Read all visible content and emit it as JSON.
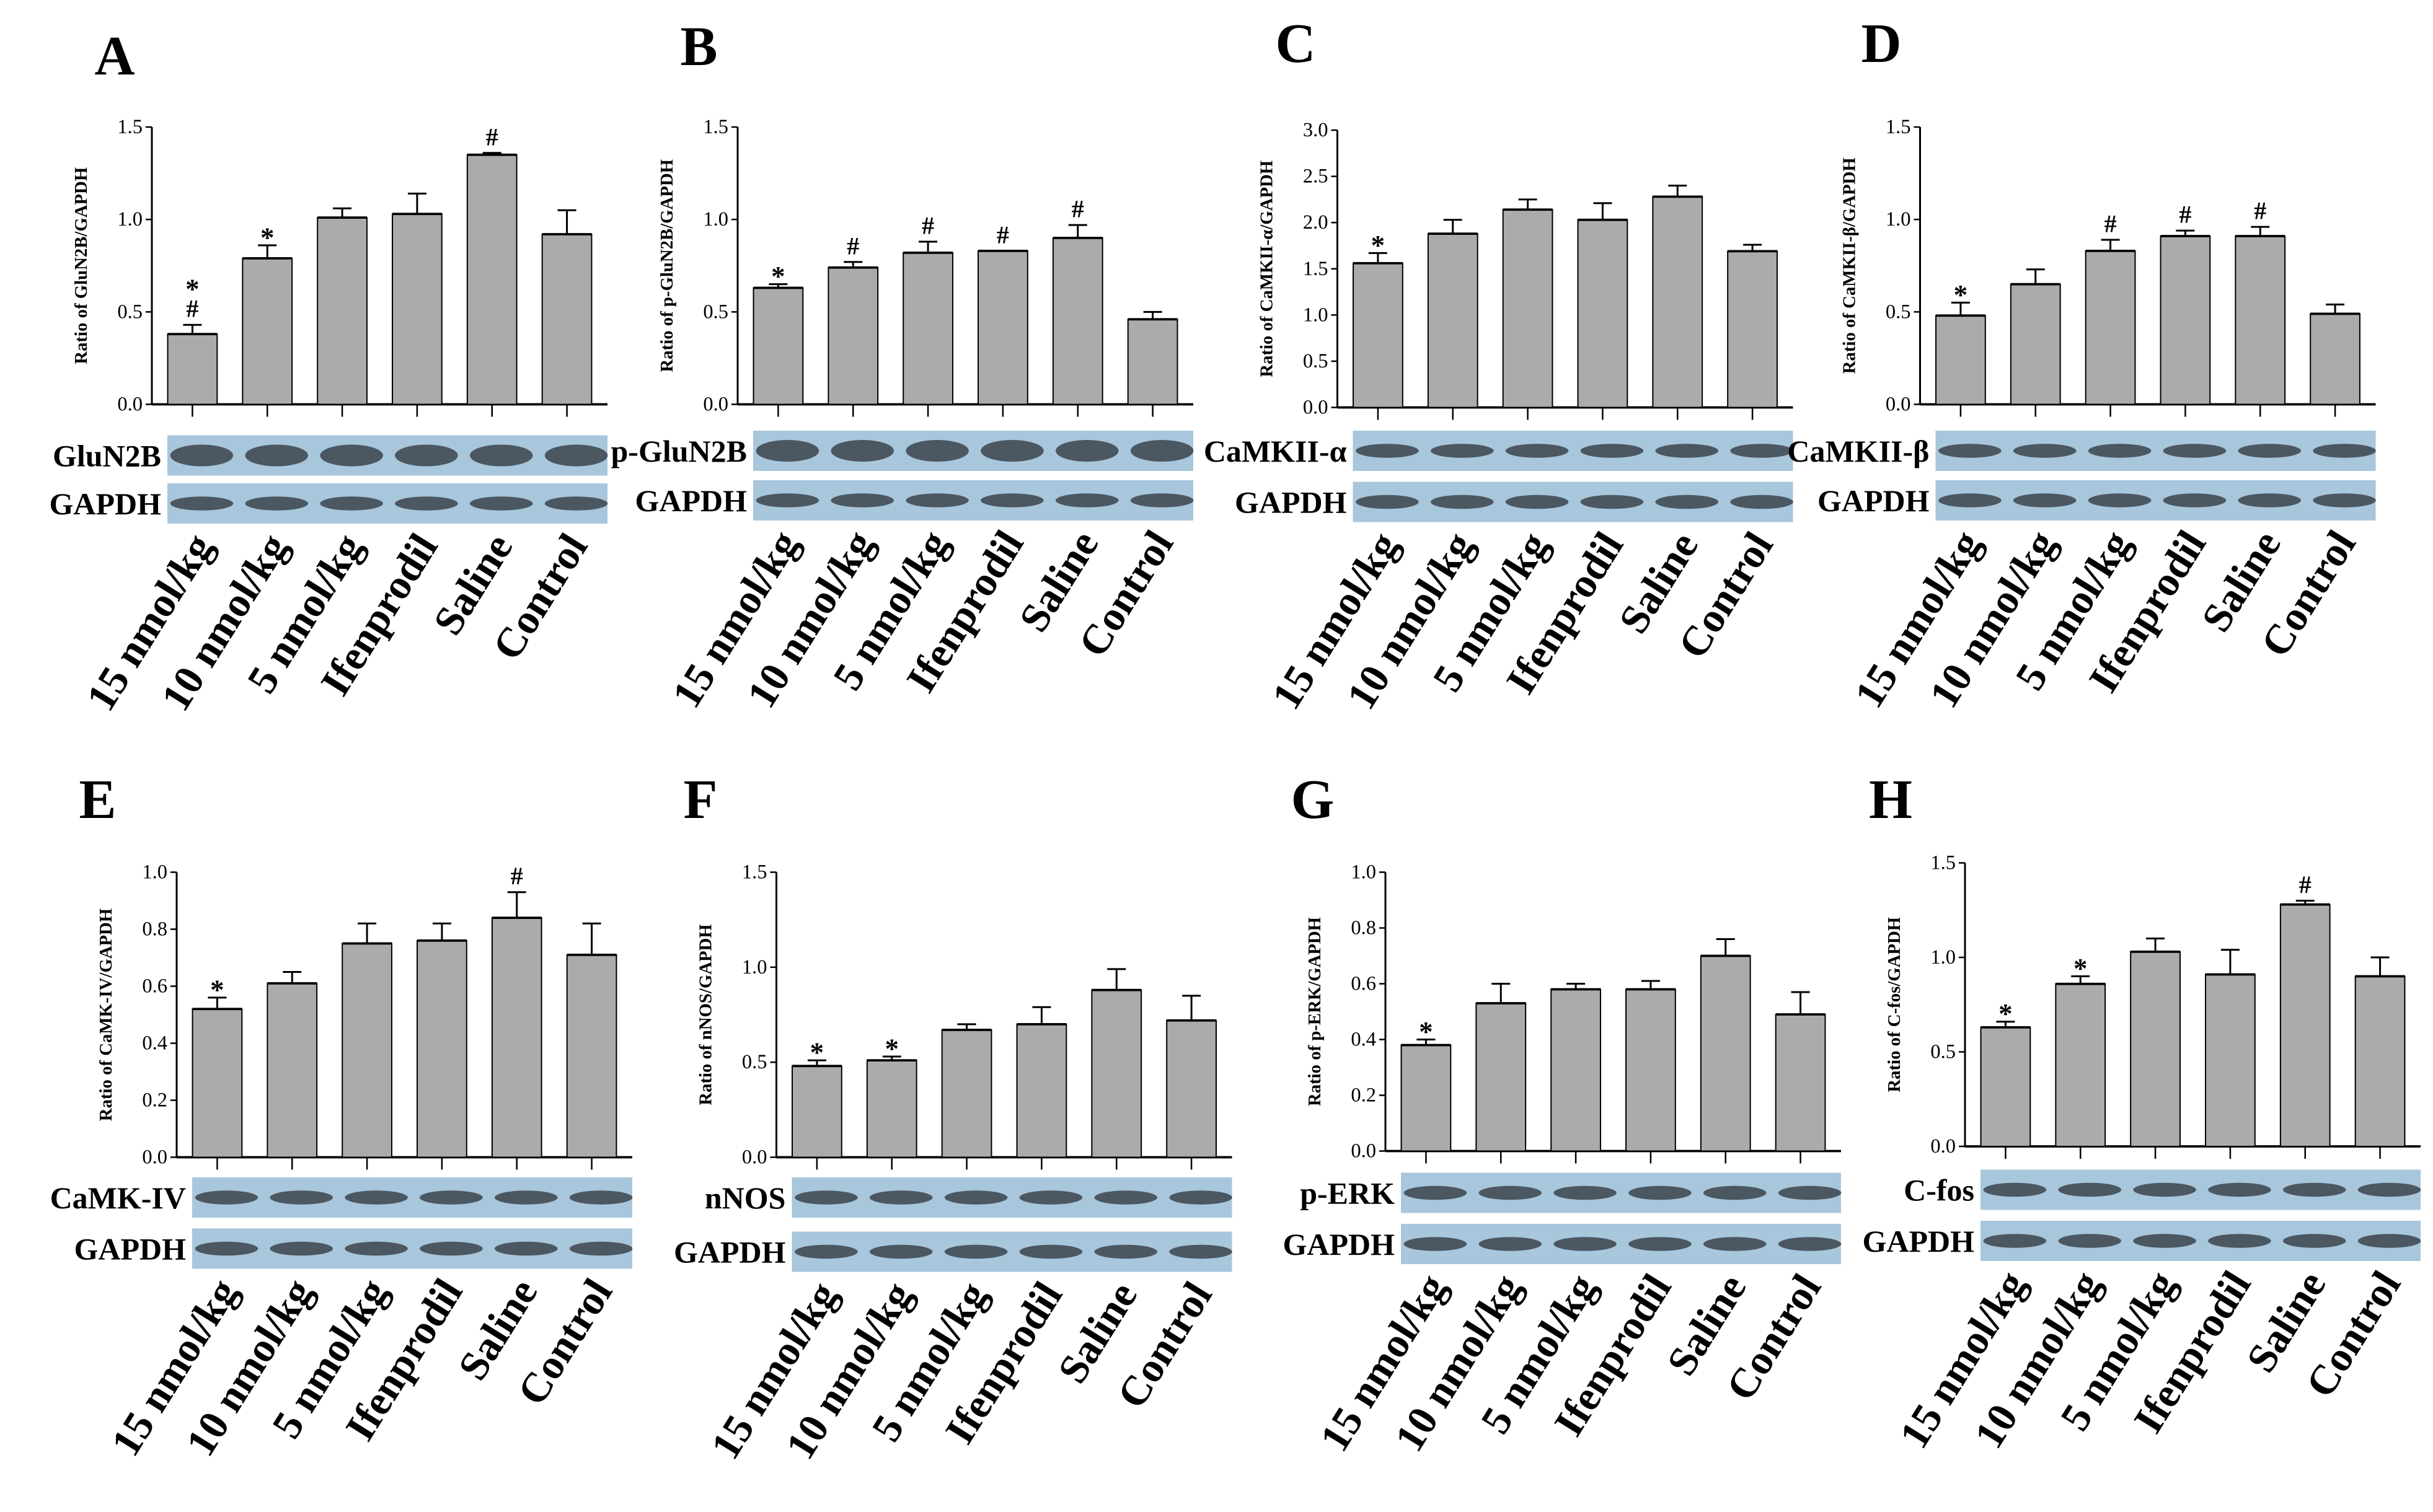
{
  "categories": [
    "15 nmol/kg",
    "10 nmol/kg",
    "5 nmol/kg",
    "Ifenprodil",
    "Saline",
    "Control"
  ],
  "loading_control": "GAPDH",
  "colors": {
    "bar": "#a9abac",
    "blot_bg": "#a8c6dc",
    "band": "#3b434b"
  },
  "chart_data": [
    {
      "type": "bar",
      "panel": "A",
      "ylabel": "Ratio of GluN2B/GAPDH",
      "blot_label": "GluN2B",
      "ylim": [
        0,
        1.5
      ],
      "yticks": [
        "0.0",
        "0.5",
        "1.0",
        "1.5"
      ],
      "tickstep": 0.5,
      "values": [
        0.38,
        0.79,
        1.01,
        1.03,
        1.35,
        0.92
      ],
      "errors": [
        0.05,
        0.07,
        0.05,
        0.11,
        0.01,
        0.13
      ],
      "annotations": [
        "*#",
        "*",
        "",
        "",
        "#",
        ""
      ]
    },
    {
      "type": "bar",
      "panel": "B",
      "ylabel": "Ratio of p-GluN2B/GAPDH",
      "blot_label": "p-GluN2B",
      "ylim": [
        0,
        1.5
      ],
      "yticks": [
        "0.0",
        "0.5",
        "1.0",
        "1.5"
      ],
      "tickstep": 0.5,
      "values": [
        0.63,
        0.74,
        0.82,
        0.83,
        0.9,
        0.46
      ],
      "errors": [
        0.02,
        0.03,
        0.06,
        0.0,
        0.07,
        0.04
      ],
      "annotations": [
        "*",
        "#",
        "#",
        "#",
        "#",
        ""
      ]
    },
    {
      "type": "bar",
      "panel": "C",
      "ylabel": "Ratio of CaMKII-α/GAPDH",
      "blot_label": "CaMKII-α",
      "ylim": [
        0,
        3.0
      ],
      "yticks": [
        "0.0",
        "0.5",
        "1.0",
        "1.5",
        "2.0",
        "2.5",
        "3.0"
      ],
      "tickstep": 0.5,
      "values": [
        1.56,
        1.88,
        2.14,
        2.03,
        2.28,
        1.69
      ],
      "errors": [
        0.11,
        0.15,
        0.11,
        0.18,
        0.12,
        0.07
      ],
      "annotations": [
        "*",
        "",
        "",
        "",
        "",
        ""
      ]
    },
    {
      "type": "bar",
      "panel": "D",
      "ylabel": "Ratio of CaMKII-β/GAPDH",
      "blot_label": "CaMKII-β",
      "ylim": [
        0,
        1.5
      ],
      "yticks": [
        "0.0",
        "0.5",
        "1.0",
        "1.5"
      ],
      "tickstep": 0.5,
      "values": [
        0.48,
        0.65,
        0.83,
        0.91,
        0.91,
        0.49
      ],
      "errors": [
        0.07,
        0.08,
        0.06,
        0.03,
        0.05,
        0.05
      ],
      "annotations": [
        "*",
        "",
        "#",
        "#",
        "#",
        ""
      ]
    },
    {
      "type": "bar",
      "panel": "E",
      "ylabel": "Ratio of CaMK-IV/GAPDH",
      "blot_label": "CaMK-IV",
      "ylim": [
        0,
        1.0
      ],
      "yticks": [
        "0.0",
        "0.2",
        "0.4",
        "0.6",
        "0.8",
        "1.0"
      ],
      "tickstep": 0.2,
      "values": [
        0.52,
        0.61,
        0.75,
        0.76,
        0.84,
        0.71
      ],
      "errors": [
        0.04,
        0.04,
        0.07,
        0.06,
        0.09,
        0.11
      ],
      "annotations": [
        "*",
        "",
        "",
        "",
        "#",
        ""
      ]
    },
    {
      "type": "bar",
      "panel": "F",
      "ylabel": "Ratio of nNOS/GAPDH",
      "blot_label": "nNOS",
      "ylim": [
        0,
        1.5
      ],
      "yticks": [
        "0.0",
        "0.5",
        "1.0",
        "1.5"
      ],
      "tickstep": 0.5,
      "values": [
        0.48,
        0.51,
        0.67,
        0.7,
        0.88,
        0.72
      ],
      "errors": [
        0.03,
        0.02,
        0.03,
        0.09,
        0.11,
        0.13
      ],
      "annotations": [
        "*",
        "*",
        "",
        "",
        "",
        ""
      ]
    },
    {
      "type": "bar",
      "panel": "G",
      "ylabel": "Ratio of p-ERK/GAPDH",
      "blot_label": "p-ERK",
      "ylim": [
        0,
        1.0
      ],
      "yticks": [
        "0.0",
        "0.2",
        "0.4",
        "0.6",
        "0.8",
        "1.0"
      ],
      "tickstep": 0.2,
      "values": [
        0.38,
        0.53,
        0.58,
        0.58,
        0.7,
        0.49
      ],
      "errors": [
        0.02,
        0.07,
        0.02,
        0.03,
        0.06,
        0.08
      ],
      "annotations": [
        "*",
        "",
        "",
        "",
        "",
        ""
      ]
    },
    {
      "type": "bar",
      "panel": "H",
      "ylabel": "Ratio of C-fos/GAPDH",
      "blot_label": "C-fos",
      "ylim": [
        0,
        1.5
      ],
      "yticks": [
        "0.0",
        "0.5",
        "1.0",
        "1.5"
      ],
      "tickstep": 0.5,
      "values": [
        0.63,
        0.86,
        1.03,
        0.91,
        1.28,
        0.9
      ],
      "errors": [
        0.03,
        0.04,
        0.07,
        0.13,
        0.02,
        0.1
      ],
      "annotations": [
        "*",
        "*",
        "",
        "",
        "#",
        ""
      ]
    }
  ]
}
